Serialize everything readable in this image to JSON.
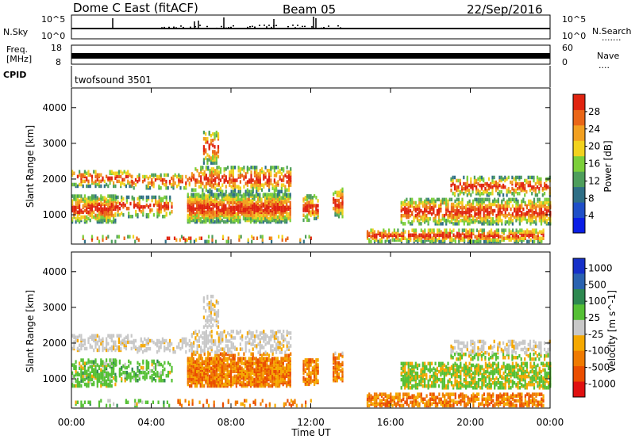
{
  "header": {
    "title": "Dome C East (fitACF)",
    "beam": "Beam 05",
    "date": "22/Sep/2016"
  },
  "strip_labels": {
    "nsky": "N.Sky",
    "freq": "Freq.",
    "mhz": "[MHz]",
    "cpid": "CPID",
    "nsearch": "N.Search",
    "nave": "Nave",
    "cpid_value": "twofsound 3501"
  },
  "strip_ticks": {
    "nsky_top": "10^5",
    "nsky_bot": "10^0",
    "freq_top": "18",
    "freq_bot": "8",
    "nsearch_top": "10^5",
    "nsearch_bot": "10^0",
    "nave_top": "60",
    "nave_bot": "0"
  },
  "chart_data": [
    {
      "type": "heatmap",
      "name": "Power",
      "ylabel": "Slant Range [km]",
      "ylim": [
        180,
        4550
      ],
      "yticks": [
        1000,
        2000,
        3000,
        4000
      ],
      "colorbar_label": "Power [dB]",
      "colorbar_ticks": [
        "4",
        "8",
        "12",
        "16",
        "20",
        "24",
        "28"
      ],
      "colormap": [
        "#0a1ee6",
        "#1f4fc8",
        "#2f6f86",
        "#4e9e5c",
        "#7ccf3a",
        "#f2d21e",
        "#f2a021",
        "#ea6617",
        "#e02410"
      ]
    },
    {
      "type": "heatmap",
      "name": "Velocity",
      "ylabel": "Slant Range [km]",
      "ylim": [
        180,
        4550
      ],
      "yticks": [
        1000,
        2000,
        3000,
        4000
      ],
      "colorbar_label": "Velocity [m s^-1]",
      "colorbar_ticks": [
        "1000",
        "500",
        "100",
        "25",
        "-25",
        "-100",
        "-500",
        "-1000"
      ],
      "colormap": [
        "#1630c8",
        "#2a62b0",
        "#2d8850",
        "#55c035",
        "#c8c8c8",
        "#f5a800",
        "#ef7a00",
        "#ea4e00",
        "#e01010"
      ]
    }
  ],
  "x_axis": {
    "label": "Time UT",
    "ticks": [
      "00:00",
      "04:00",
      "08:00",
      "12:00",
      "16:00",
      "20:00",
      "00:00"
    ]
  }
}
